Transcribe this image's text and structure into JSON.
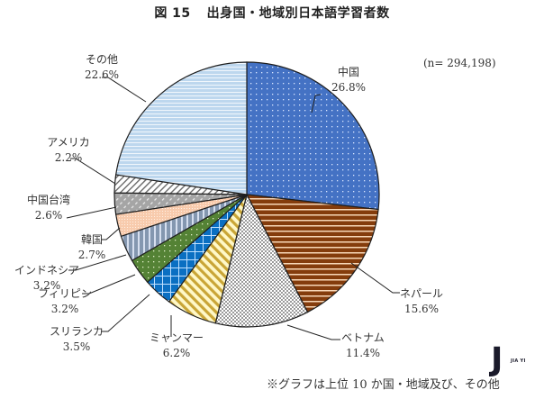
{
  "header": {
    "figure_number": "図 15",
    "title": "出身国・地域別日本語学習者数"
  },
  "sample_note": "(n= 294,198)",
  "footnote": "※グラフは上位 10 か国・地域及び、その他",
  "watermark": {
    "mark": "J",
    "text": "JIA YI"
  },
  "chart_data": {
    "type": "pie",
    "title": "図 15 出身国・地域別日本語学習者数",
    "subtitle": "(n= 294,198)",
    "start_angle": "12 o'clock, clockwise",
    "categories": [
      "中国",
      "ネパール",
      "ベトナム",
      "ミャンマー",
      "スリランカ",
      "フィリピン",
      "インドネシア",
      "韓国",
      "中国台湾",
      "アメリカ",
      "その他"
    ],
    "values": [
      26.8,
      15.6,
      11.4,
      6.2,
      3.5,
      3.2,
      3.2,
      2.7,
      2.6,
      2.2,
      22.6
    ],
    "unit": "%",
    "total_n": 294198,
    "annotation": "※グラフは上位 10 か国・地域及び、その他",
    "colors": [
      "#4472c4",
      "#8b4513",
      "#a6a6a6",
      "#e8c85a",
      "#0a6fc2",
      "#5a8f32",
      "#8ea2c8",
      "#f6cfb4",
      "#a0a0a0",
      "#ffffff",
      "#b8d3f0"
    ],
    "patterns": [
      "dots",
      "horizontal-stripes",
      "checker",
      "diagonal-stripes",
      "grid",
      "dots",
      "vertical-stripes",
      "fine-dots",
      "dashed-diagonal",
      "diagonal-hatch",
      "horizontal-lines"
    ]
  },
  "labels": [
    {
      "name": "中国",
      "pct": "26.8%"
    },
    {
      "name": "ネパール",
      "pct": "15.6%"
    },
    {
      "name": "ベトナム",
      "pct": "11.4%"
    },
    {
      "name": "ミャンマー",
      "pct": "6.2%"
    },
    {
      "name": "スリランカ",
      "pct": "3.5%"
    },
    {
      "name": "フィリピン",
      "pct": "3.2%"
    },
    {
      "name": "インドネシア",
      "pct": "3.2%"
    },
    {
      "name": "韓国",
      "pct": "2.7%"
    },
    {
      "name": "中国台湾",
      "pct": "2.6%"
    },
    {
      "name": "アメリカ",
      "pct": "2.2%"
    },
    {
      "name": "その他",
      "pct": "22.6%"
    }
  ]
}
